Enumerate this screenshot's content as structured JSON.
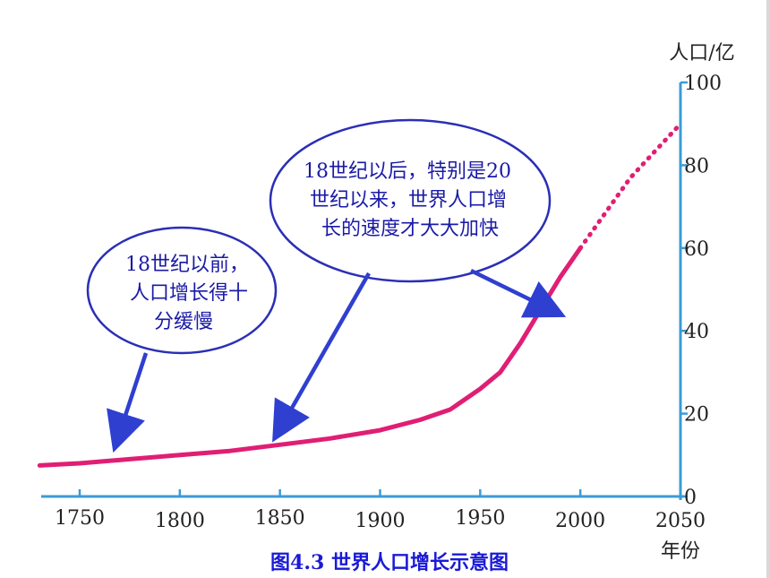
{
  "chart_data": {
    "type": "line",
    "title": "",
    "xlabel": "年份",
    "ylabel": "人口/亿",
    "xlim": [
      1730,
      2053
    ],
    "ylim": [
      0,
      100
    ],
    "x_ticks": [
      "1750",
      "1800",
      "1850",
      "1900",
      "1950",
      "2000",
      "2050"
    ],
    "y_ticks": [
      "0",
      "20",
      "40",
      "60",
      "80",
      "100"
    ],
    "series": [
      {
        "x": [
          1730,
          1750,
          1775,
          1800,
          1825,
          1850,
          1875,
          1900,
          1920,
          1935,
          1950,
          1960,
          1970,
          1980,
          1990,
          2000
        ],
        "y": [
          7.5,
          8,
          9,
          10,
          11,
          12.5,
          14,
          16,
          18.5,
          21,
          26,
          30,
          37,
          45,
          53,
          60
        ],
        "style": "solid"
      },
      {
        "x": [
          2000,
          2025,
          2050
        ],
        "y": [
          60,
          77,
          90
        ],
        "style": "dotted"
      }
    ],
    "colors": {
      "line": "#e01e74",
      "axis": "#3b9bd6",
      "arrow": "#2f3fd0",
      "bubble_edge": "#2b2fb5",
      "bubble_text": "#1a1aa6",
      "caption": "#1a1ad6"
    },
    "annotations": [
      {
        "lines": [
          "18世纪以前，",
          "人口增长得十",
          "分缓慢"
        ]
      },
      {
        "lines": [
          "18世纪以后，特别是20",
          "世纪以来，世界人口增",
          "长的速度才大大加快"
        ]
      }
    ],
    "caption": "图4.3 世界人口增长示意图"
  }
}
